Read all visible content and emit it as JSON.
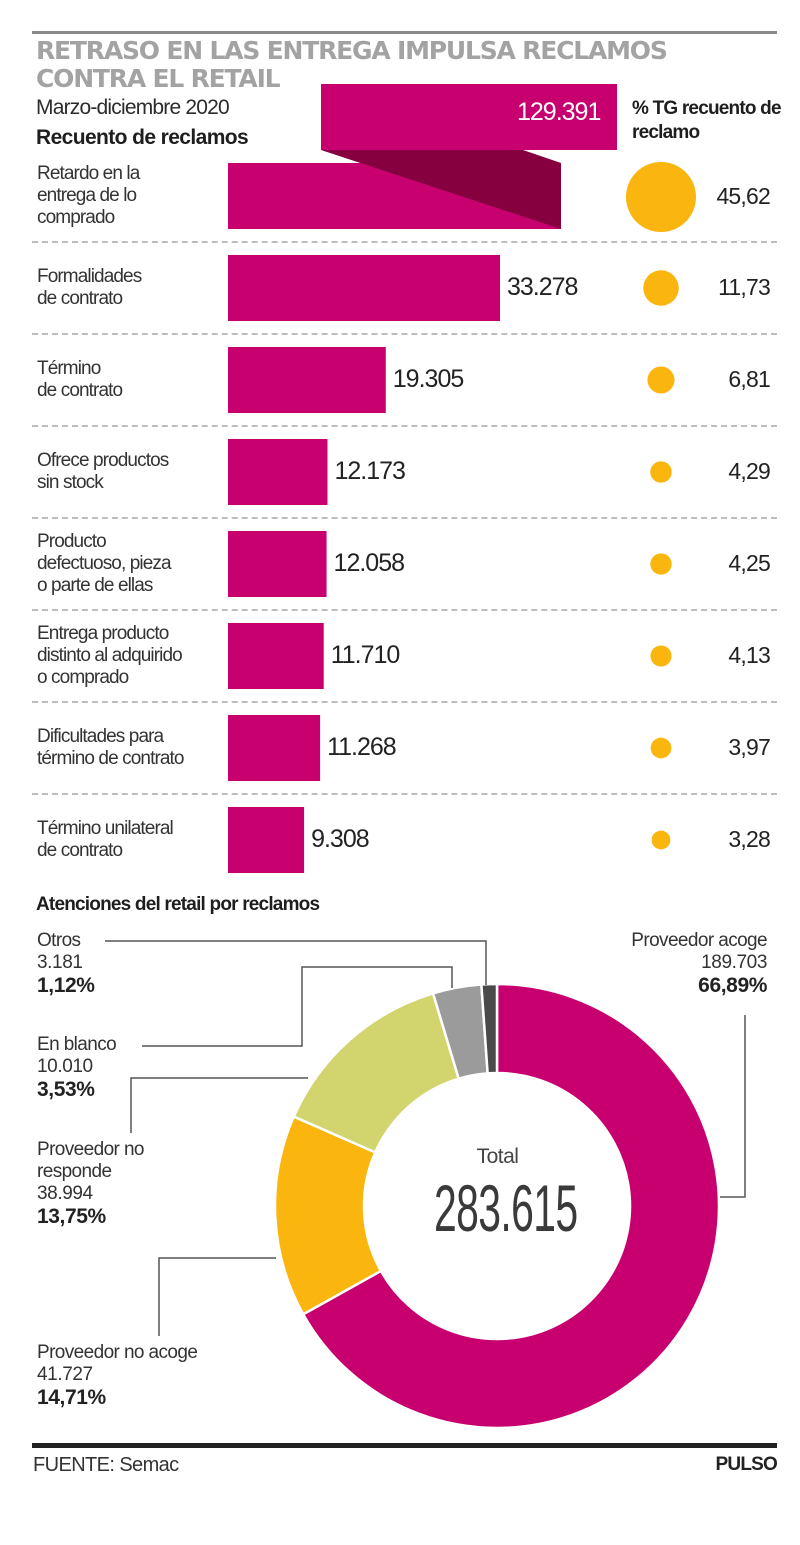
{
  "header": {
    "title": "RETRASO EN LAS ENTREGA IMPULSA RECLAMOS CONTRA EL RETAIL",
    "subtitle": "Marzo-diciembre 2020",
    "section_title": "Recuento de reclamos",
    "pct_header": "% TG recuento de reclamo"
  },
  "colors": {
    "bar": "#c8006f",
    "bar_fold": "#86003f",
    "circle": "#fbb50f",
    "slice_acoge": "#c8006f",
    "slice_no_acoge": "#fbb50f",
    "slice_no_responde": "#d2d46e",
    "slice_en_blanco": "#9b9b9b",
    "slice_otros": "#4a4a4a"
  },
  "chart_data": [
    {
      "type": "bar",
      "title": "Recuento de reclamos",
      "subtitle": "Marzo-diciembre 2020",
      "categories": [
        "Retardo en la entrega de lo comprado",
        "Formalidades de contrato",
        "Término de contrato",
        "Ofrece productos sin stock",
        "Producto defectuoso, pieza o parte de ellas",
        "Entrega producto distinto al adquirido o comprado",
        "Dificultades para término de contrato",
        "Término unilateral de contrato"
      ],
      "category_lines": [
        [
          "Retardo en la",
          "entrega de lo",
          "comprado"
        ],
        [
          "Formalidades",
          "de contrato"
        ],
        [
          "Término",
          "de contrato"
        ],
        [
          "Ofrece productos",
          "sin stock"
        ],
        [
          "Producto",
          "defectuoso, pieza",
          "o parte de ellas"
        ],
        [
          "Entrega producto",
          "distinto al adquirido",
          "o comprado"
        ],
        [
          "Dificultades para",
          "término de contrato"
        ],
        [
          "Término unilateral",
          "de contrato"
        ]
      ],
      "values": [
        129391,
        33278,
        19305,
        12173,
        12058,
        11710,
        11268,
        9308
      ],
      "value_labels": [
        "129.391",
        "33.278",
        "19.305",
        "12.173",
        "12.058",
        "11.710",
        "11.268",
        "9.308"
      ],
      "pct_header": "% TG recuento de reclamo",
      "pct_values": [
        45.62,
        11.73,
        6.81,
        4.29,
        4.25,
        4.13,
        3.97,
        3.28
      ],
      "pct_labels": [
        "45,62",
        "11,73",
        "6,81",
        "4,29",
        "4,25",
        "4,13",
        "3,97",
        "3,28"
      ],
      "xlabel": "",
      "ylabel": ""
    },
    {
      "type": "pie",
      "title": "Atenciones del retail por reclamos",
      "donut": true,
      "center_label": "Total",
      "center_value": "283.615",
      "total": 283615,
      "slices": [
        {
          "name": "Proveedor acoge",
          "value": 189703,
          "value_label": "189.703",
          "pct": 66.89,
          "pct_label": "66,89%"
        },
        {
          "name": "Proveedor no acoge",
          "value": 41727,
          "value_label": "41.727",
          "pct": 14.71,
          "pct_label": "14,71%"
        },
        {
          "name": "Proveedor no responde",
          "value": 38994,
          "value_label": "38.994",
          "pct": 13.75,
          "pct_label": "13,75%"
        },
        {
          "name": "En blanco",
          "value": 10010,
          "value_label": "10.010",
          "pct": 3.53,
          "pct_label": "3,53%"
        },
        {
          "name": "Otros",
          "value": 3181,
          "value_label": "3.181",
          "pct": 1.12,
          "pct_label": "1,12%"
        }
      ]
    }
  ],
  "donut_labels": {
    "otros": {
      "name": "Otros"
    },
    "en_blanco": {
      "name": "En blanco"
    },
    "no_responde": {
      "line1": "Proveedor no",
      "line2": "responde"
    },
    "no_acoge": {
      "name": "Proveedor no acoge"
    },
    "acoge": {
      "name": "Proveedor acoge"
    }
  },
  "footer": {
    "source": "FUENTE: Semac",
    "brand": "PULSO"
  }
}
